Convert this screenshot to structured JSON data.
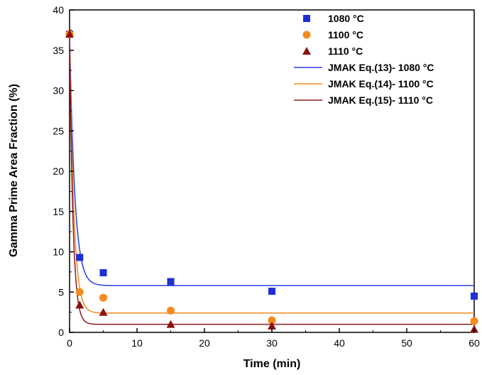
{
  "chart_data": {
    "type": "scatter",
    "xlabel": "Time (min)",
    "ylabel": "Gamma Prime Area Fraction (%)",
    "xlim": [
      0,
      60
    ],
    "ylim": [
      0,
      40
    ],
    "xticks": [
      "0",
      "10",
      "20",
      "30",
      "40",
      "50",
      "60"
    ],
    "yticks": [
      "0",
      "5",
      "10",
      "15",
      "20",
      "25",
      "30",
      "35",
      "40"
    ],
    "grid": false,
    "legend_position": "top-right",
    "series": [
      {
        "name": "1080 °C",
        "marker": "square",
        "color": "#1f2fd6",
        "x": [
          0,
          1.5,
          5,
          15,
          30,
          60
        ],
        "y": [
          37,
          9.3,
          7.4,
          6.3,
          5.1,
          4.5
        ]
      },
      {
        "name": "1100 °C",
        "marker": "circle",
        "color": "#f58a1f",
        "x": [
          0,
          1.5,
          5,
          15,
          30,
          60
        ],
        "y": [
          37,
          5.0,
          4.3,
          2.7,
          1.5,
          1.4
        ]
      },
      {
        "name": "1110 °C",
        "marker": "triangle",
        "color": "#8b1010",
        "x": [
          0,
          1.5,
          5,
          15,
          30,
          60
        ],
        "y": [
          37,
          3.4,
          2.5,
          1.0,
          0.8,
          0.4
        ]
      }
    ],
    "fits": [
      {
        "name": "JMAK Eq.(13)- 1080 °C",
        "color": "#2a3de0",
        "y0": 37,
        "yinf": 5.8,
        "k": 1.3
      },
      {
        "name": "JMAK Eq.(14)- 1100 °C",
        "color": "#f58a1f",
        "y0": 37,
        "yinf": 2.4,
        "k": 1.6
      },
      {
        "name": "JMAK Eq.(15)- 1110 °C",
        "color": "#8b1a1a",
        "y0": 37,
        "yinf": 1.0,
        "k": 2.0
      }
    ]
  }
}
